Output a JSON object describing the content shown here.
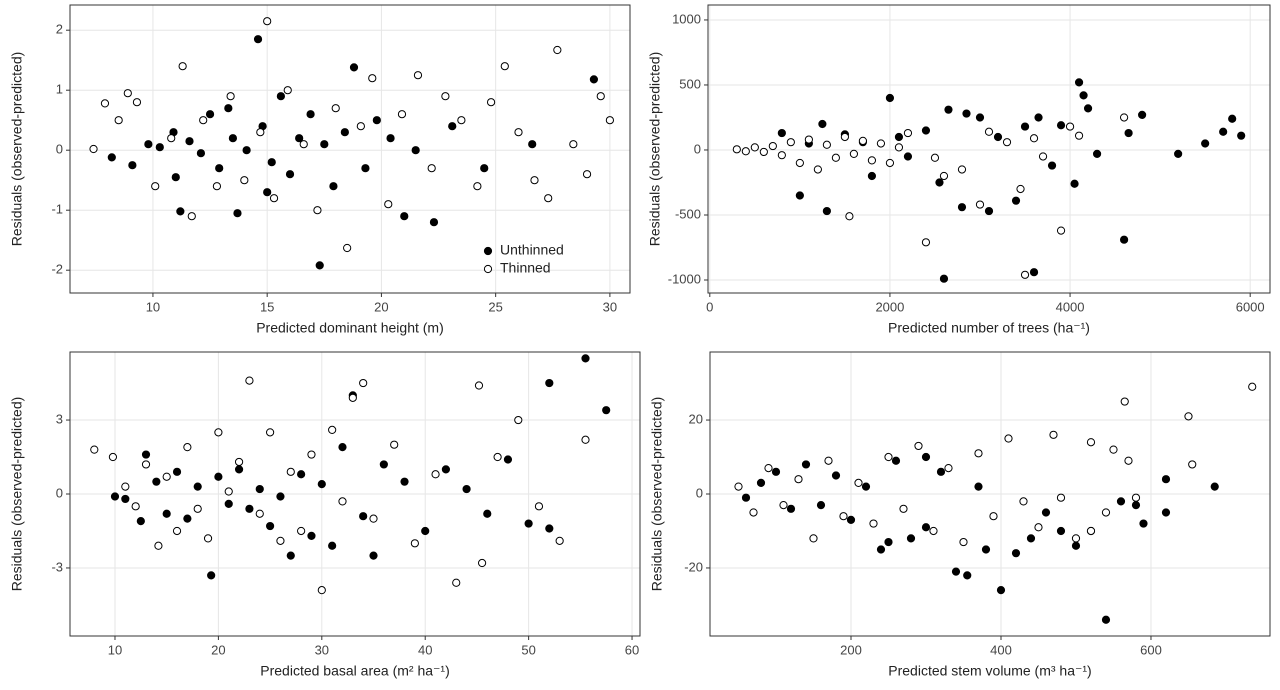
{
  "chart_data": [
    {
      "type": "scatter",
      "xlabel": "Predicted dominant height (m)",
      "ylabel": "Residuals (observed-predicted)",
      "xlim": [
        6.37,
        30.88
      ],
      "xticks": [
        10,
        15,
        20,
        25,
        30
      ],
      "ylim": [
        -2.38,
        2.42
      ],
      "yticks": [
        -2,
        -1,
        0,
        1,
        2
      ],
      "grid": true,
      "legend": "lower right",
      "series": [
        {
          "name": "Unthinned",
          "color": "#000000",
          "filled": true,
          "x": [
            8.2,
            9.1,
            9.8,
            10.3,
            10.9,
            11.2,
            11.6,
            12.1,
            12.5,
            12.9,
            13.3,
            13.7,
            14.1,
            14.6,
            14.8,
            15.2,
            15.6,
            16.0,
            16.4,
            16.9,
            17.3,
            17.5,
            17.9,
            18.4,
            18.8,
            19.3,
            19.8,
            20.4,
            21.0,
            21.5,
            22.3,
            23.1,
            24.5,
            26.6,
            29.3,
            11.0,
            13.5,
            15.0
          ],
          "values": [
            -0.12,
            -0.25,
            0.1,
            0.05,
            0.3,
            -1.02,
            0.15,
            -0.05,
            0.6,
            -0.3,
            0.7,
            -1.05,
            0.0,
            1.85,
            0.4,
            -0.2,
            0.9,
            -0.4,
            0.2,
            0.6,
            -1.92,
            0.1,
            -0.6,
            0.3,
            1.38,
            -0.3,
            0.5,
            0.2,
            -1.1,
            0.0,
            -1.2,
            0.4,
            -0.3,
            0.1,
            1.18,
            -0.45,
            0.2,
            -0.7
          ]
        },
        {
          "name": "Thinned",
          "color": "#000000",
          "filled": false,
          "x": [
            7.4,
            7.9,
            8.5,
            8.9,
            9.3,
            10.1,
            10.8,
            11.3,
            11.7,
            12.2,
            12.8,
            13.4,
            14.0,
            14.7,
            15.3,
            15.9,
            16.6,
            17.2,
            18.0,
            18.5,
            19.1,
            19.6,
            20.3,
            20.9,
            21.6,
            22.2,
            22.8,
            23.5,
            24.2,
            24.8,
            25.4,
            26.0,
            26.7,
            27.3,
            27.7,
            28.4,
            29.0,
            29.6,
            30.0,
            15.0
          ],
          "values": [
            0.02,
            0.78,
            0.5,
            0.95,
            0.8,
            -0.6,
            0.2,
            1.4,
            -1.1,
            0.5,
            -0.6,
            0.9,
            -0.5,
            0.3,
            -0.8,
            1.0,
            0.1,
            -1.0,
            0.7,
            -1.63,
            0.4,
            1.2,
            -0.9,
            0.6,
            1.25,
            -0.3,
            0.9,
            0.5,
            -0.6,
            0.8,
            1.4,
            0.3,
            -0.5,
            -0.8,
            1.67,
            0.1,
            -0.4,
            0.9,
            0.5,
            2.15
          ]
        }
      ]
    },
    {
      "type": "scatter",
      "xlabel": "Predicted number of trees (ha⁻¹)",
      "ylabel": "Residuals (observed-predicted)",
      "xlim": [
        -20,
        6220
      ],
      "xticks": [
        0,
        2000,
        4000,
        6000
      ],
      "ylim": [
        -1100,
        1115
      ],
      "yticks": [
        -1000,
        -500,
        0,
        500,
        1000
      ],
      "grid": true,
      "series": [
        {
          "color": "#000000",
          "filled": true,
          "x": [
            800,
            1000,
            1100,
            1250,
            1300,
            1500,
            1700,
            1800,
            2000,
            2100,
            2200,
            2400,
            2550,
            2600,
            2650,
            2800,
            2850,
            3000,
            3100,
            3200,
            3400,
            3500,
            3600,
            3650,
            3800,
            3900,
            4050,
            4100,
            4150,
            4200,
            4300,
            4600,
            4650,
            4800,
            5200,
            5500,
            5700,
            5800,
            5900
          ],
          "values": [
            130,
            -350,
            50,
            200,
            -470,
            120,
            60,
            -200,
            400,
            100,
            -50,
            150,
            -250,
            -990,
            310,
            -440,
            280,
            250,
            -470,
            100,
            -390,
            180,
            -940,
            250,
            -120,
            190,
            -260,
            520,
            420,
            320,
            -30,
            -690,
            130,
            270,
            -30,
            50,
            140,
            240,
            110
          ]
        },
        {
          "color": "#000000",
          "filled": false,
          "x": [
            300,
            400,
            500,
            600,
            700,
            800,
            900,
            1000,
            1100,
            1200,
            1300,
            1400,
            1500,
            1550,
            1600,
            1700,
            1800,
            1900,
            2000,
            2100,
            2200,
            2400,
            2500,
            2600,
            2800,
            3000,
            3100,
            3300,
            3500,
            3600,
            3700,
            3900,
            4000,
            4100,
            4600,
            3450
          ],
          "values": [
            5,
            -10,
            20,
            -15,
            30,
            -40,
            60,
            -100,
            80,
            -150,
            40,
            -60,
            100,
            -510,
            -30,
            70,
            -80,
            50,
            -100,
            20,
            130,
            -710,
            -60,
            -200,
            -150,
            -420,
            140,
            60,
            -960,
            90,
            -50,
            -620,
            180,
            110,
            250,
            -300
          ]
        }
      ]
    },
    {
      "type": "scatter",
      "xlabel": "Predicted basal area (m² ha⁻¹)",
      "ylabel": "Residuals (observed-predicted)",
      "xlim": [
        5.65,
        60.77
      ],
      "xticks": [
        10,
        20,
        30,
        40,
        50,
        60
      ],
      "ylim": [
        -5.76,
        5.76
      ],
      "yticks": [
        -3,
        0,
        3
      ],
      "grid": true,
      "series": [
        {
          "color": "#000000",
          "filled": true,
          "x": [
            10,
            11,
            12.5,
            13,
            14,
            15,
            16,
            17,
            18,
            19.3,
            20,
            21,
            22,
            23,
            24,
            25,
            26,
            27,
            28,
            29,
            30,
            31,
            32,
            33,
            34,
            35,
            36,
            38,
            40,
            42,
            44,
            46,
            48,
            50,
            52,
            55.5,
            57.5,
            52
          ],
          "values": [
            -0.1,
            -0.2,
            -1.1,
            1.6,
            0.5,
            -0.8,
            0.9,
            -1.0,
            0.3,
            -3.3,
            0.7,
            -0.4,
            1.0,
            -0.6,
            0.2,
            -1.3,
            -0.1,
            -2.5,
            0.8,
            -1.7,
            0.4,
            -2.1,
            1.9,
            4.0,
            -0.9,
            -2.5,
            1.2,
            0.5,
            -1.5,
            1.0,
            0.2,
            -0.8,
            1.4,
            -1.2,
            4.5,
            5.5,
            3.4,
            -1.4
          ]
        },
        {
          "color": "#000000",
          "filled": false,
          "x": [
            8,
            9.8,
            11,
            12,
            13,
            14.2,
            15,
            16,
            17,
            18,
            19,
            20,
            21,
            22,
            23,
            24,
            25,
            26,
            27,
            28,
            29,
            30,
            31,
            32,
            33,
            34,
            35,
            37,
            39,
            41,
            43,
            45.2,
            45.5,
            47,
            49,
            51,
            53,
            55.5
          ],
          "values": [
            1.8,
            1.5,
            0.3,
            -0.5,
            1.2,
            -2.1,
            0.7,
            -1.5,
            1.9,
            -0.6,
            -1.8,
            2.5,
            0.1,
            1.3,
            4.6,
            -0.8,
            2.5,
            -1.9,
            0.9,
            -1.5,
            1.6,
            -3.9,
            2.6,
            -0.3,
            3.9,
            4.5,
            -1.0,
            2.0,
            -2.0,
            0.8,
            -3.6,
            4.4,
            -2.8,
            1.5,
            3.0,
            -0.5,
            -1.9,
            2.2
          ]
        }
      ]
    },
    {
      "type": "scatter",
      "xlabel": "Predicted stem volume (m³ ha⁻¹)",
      "ylabel": "Residuals (observed-predicted)",
      "xlim": [
        12,
        758.7
      ],
      "xticks": [
        200,
        400,
        600
      ],
      "ylim": [
        -38.4,
        38.4
      ],
      "yticks": [
        -20,
        0,
        20
      ],
      "grid": true,
      "series": [
        {
          "color": "#000000",
          "filled": true,
          "x": [
            60,
            80,
            100,
            120,
            140,
            160,
            180,
            200,
            220,
            240,
            260,
            280,
            300,
            320,
            340,
            355,
            370,
            380,
            400,
            420,
            440,
            460,
            480,
            500,
            520,
            540,
            560,
            580,
            590,
            620,
            620,
            685,
            250,
            300
          ],
          "values": [
            -1,
            3,
            6,
            -4,
            8,
            -3,
            5,
            -7,
            2,
            -15,
            9,
            -12,
            -9,
            6,
            -21,
            -22,
            2,
            -15,
            -26,
            -16,
            -12,
            -5,
            -10,
            -14,
            -10,
            -34,
            -2,
            -3,
            -8,
            4,
            -5,
            2,
            -13,
            10
          ]
        },
        {
          "color": "#000000",
          "filled": false,
          "x": [
            50,
            70,
            90,
            110,
            130,
            150,
            170,
            190,
            210,
            230,
            250,
            270,
            290,
            310,
            330,
            350,
            370,
            390,
            410,
            430,
            450,
            470,
            480,
            500,
            520,
            540,
            550,
            565,
            570,
            580,
            650,
            655,
            735,
            520
          ],
          "values": [
            2,
            -5,
            7,
            -3,
            4,
            -12,
            9,
            -6,
            3,
            -8,
            10,
            -4,
            13,
            -10,
            7,
            -13,
            11,
            -6,
            15,
            -2,
            -9,
            16,
            -1,
            -12,
            14,
            -5,
            12,
            25,
            9,
            -1,
            21,
            8,
            29,
            -10
          ]
        }
      ]
    }
  ]
}
